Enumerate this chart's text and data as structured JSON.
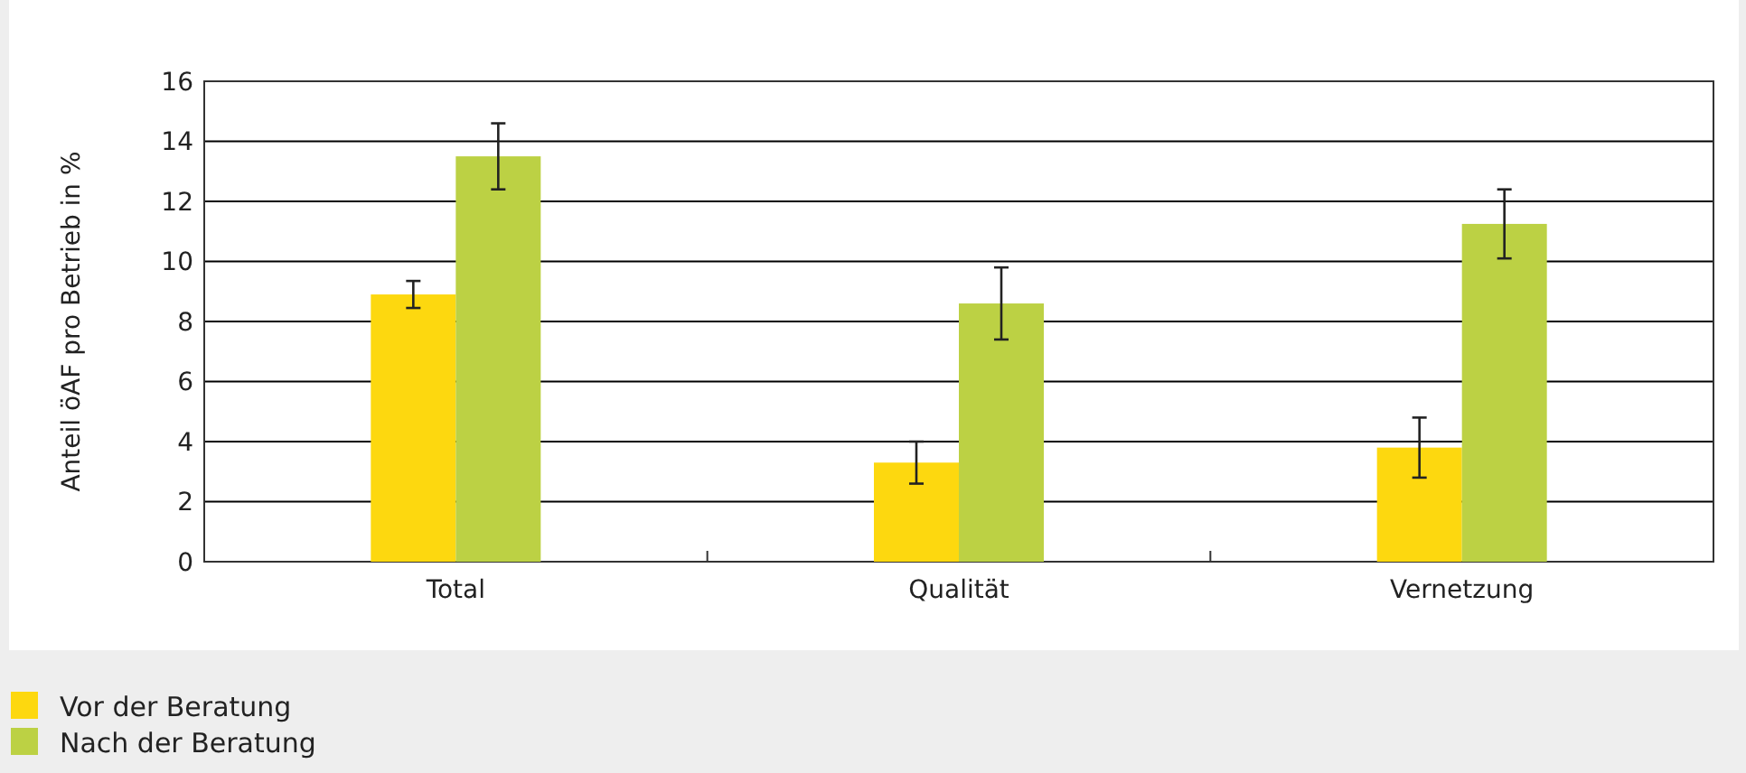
{
  "chart_data": {
    "type": "bar",
    "ylabel": "Anteil öAF pro Betrieb in %",
    "categories": [
      "Total",
      "Qualität",
      "Vernetzung"
    ],
    "series": [
      {
        "name": "Vor der Beratung",
        "color": "#fdd80f",
        "values": [
          8.9,
          3.3,
          3.8
        ],
        "errors": [
          0.45,
          0.7,
          1.0
        ]
      },
      {
        "name": "Nach der Beratung",
        "color": "#bcd144",
        "values": [
          13.5,
          8.6,
          11.25
        ],
        "errors": [
          1.1,
          1.2,
          1.15
        ]
      }
    ],
    "ylim": [
      0,
      16
    ],
    "yticks": [
      0,
      2,
      4,
      6,
      8,
      10,
      12,
      14,
      16
    ],
    "grid": "y",
    "legend": "bottom left"
  }
}
